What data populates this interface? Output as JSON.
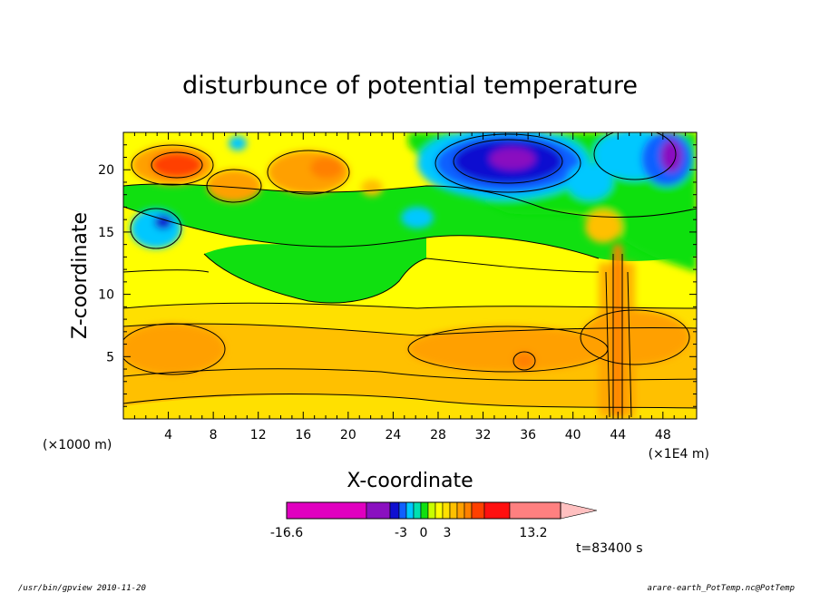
{
  "chart_data": {
    "type": "heatmap",
    "title": "disturbunce of potential temperature",
    "xlabel": "X-coordinate",
    "ylabel": "Z-coordinate",
    "x_ticks": [
      "4",
      "8",
      "12",
      "16",
      "20",
      "24",
      "28",
      "32",
      "36",
      "40",
      "44",
      "48"
    ],
    "y_ticks": [
      "5",
      "10",
      "15",
      "20"
    ],
    "xlim": [
      0,
      51
    ],
    "ylim": [
      0,
      23
    ],
    "x_unit_left": "(×1000 m)",
    "x_unit_right": "(×1E4 m)",
    "colorbar": {
      "labels": [
        "-16.6",
        "-3",
        "0",
        "3",
        "13.2"
      ],
      "colors": [
        "#e000c0",
        "#8a10c0",
        "#1010d0",
        "#1060ff",
        "#00c8ff",
        "#00e0b0",
        "#10e010",
        "#c8ff00",
        "#ffff00",
        "#ffe000",
        "#ffc000",
        "#ffa000",
        "#ff8000",
        "#ff4000",
        "#ff1010",
        "#ff8080",
        "#ffc0c0"
      ]
    },
    "annotation": "t=83400 s"
  },
  "footer": {
    "left": "/usr/bin/gpview   2010-11-20",
    "right": "arare-earth_PotTemp.nc@PotTemp"
  }
}
